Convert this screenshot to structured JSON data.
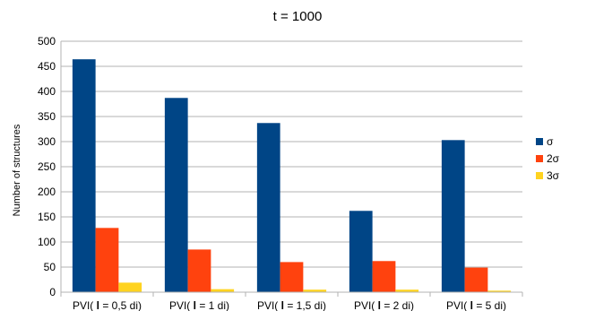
{
  "chart_data": {
    "type": "bar",
    "title": "t = 1000",
    "xlabel": "",
    "ylabel": "Number of structures",
    "categories": [
      "PVI( l = 0,5 di)",
      "PVI( l = 1 di)",
      "PVI( l = 1,5 di)",
      "PVI( l = 2 di)",
      "PVI( l = 5 di)"
    ],
    "series": [
      {
        "name": "σ",
        "color": "#004586",
        "values": [
          464,
          387,
          337,
          162,
          303
        ]
      },
      {
        "name": "2σ",
        "color": "#ff420e",
        "values": [
          128,
          85,
          60,
          62,
          49
        ]
      },
      {
        "name": "3σ",
        "color": "#ffd320",
        "values": [
          19,
          6,
          5,
          5,
          3
        ]
      }
    ],
    "ylim": [
      0,
      500
    ],
    "yticks": [
      0,
      50,
      100,
      150,
      200,
      250,
      300,
      350,
      400,
      450,
      500
    ],
    "grid": true,
    "legend": "right"
  }
}
